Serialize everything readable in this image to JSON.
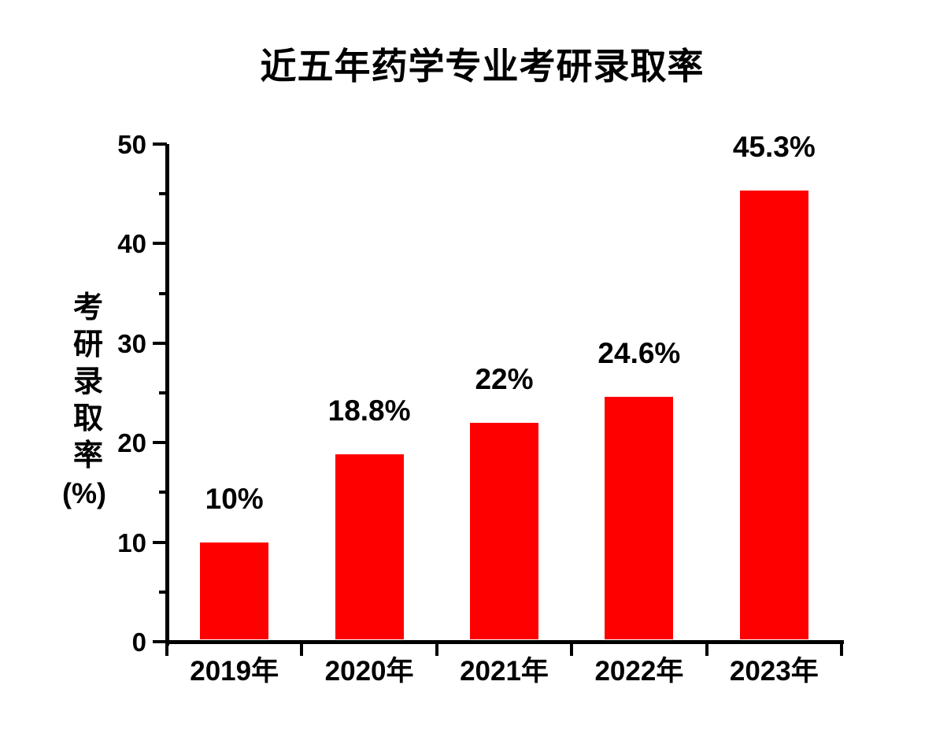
{
  "title": "近五年药学专业考研录取率",
  "chart_data": {
    "type": "bar",
    "title": "近五年药学专业考研录取率",
    "categories": [
      "2019年",
      "2020年",
      "2021年",
      "2022年",
      "2023年"
    ],
    "values": [
      10,
      18.8,
      22,
      24.6,
      45.3
    ],
    "bar_labels": [
      "10%",
      "18.8%",
      "22%",
      "24.6%",
      "45.3%"
    ],
    "xlabel": "",
    "ylabel": "考研录取率",
    "ylabel_unit": "(%)",
    "ylim": [
      0,
      50
    ],
    "yticks": [
      0,
      10,
      20,
      30,
      40,
      50
    ],
    "yminorticks": [
      5,
      15,
      25,
      35,
      45
    ],
    "grid": false,
    "legend_position": "none",
    "bar_color": "#ff0000",
    "axis_color": "#000000",
    "text_color": "#000000",
    "background_color": "#ffffff"
  }
}
